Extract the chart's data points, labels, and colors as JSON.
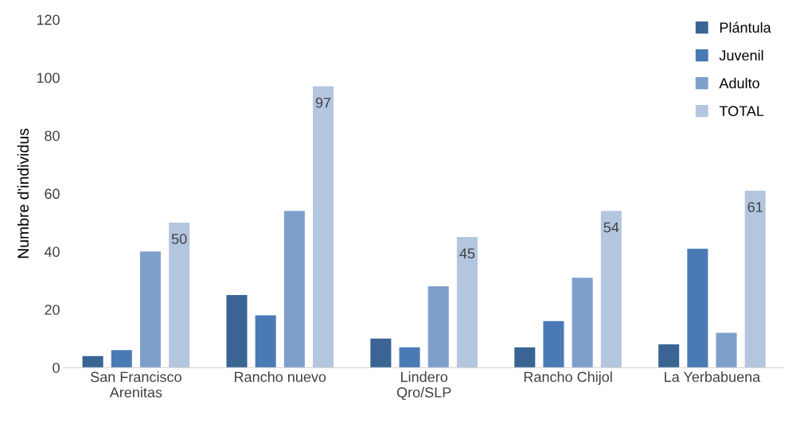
{
  "chart_data": {
    "type": "bar",
    "ylabel": "Numbre d'individus",
    "categories": [
      "San Francisco\nArenitas",
      "Rancho nuevo",
      "Lindero\nQro/SLP",
      "Rancho Chijol",
      "La Yerbabuena"
    ],
    "series": [
      {
        "name": "Plántula",
        "color": "#3a6494",
        "values": [
          4,
          25,
          10,
          7,
          8
        ]
      },
      {
        "name": "Juvenil",
        "color": "#4a7ab5",
        "values": [
          6,
          18,
          7,
          16,
          41
        ]
      },
      {
        "name": "Adulto",
        "color": "#7f9fcb",
        "values": [
          40,
          54,
          28,
          31,
          12
        ]
      },
      {
        "name": "TOTAL",
        "color": "#b4c5e0",
        "values": [
          50,
          97,
          45,
          54,
          61
        ],
        "value_labels": [
          "50",
          "97",
          "45",
          "54",
          "61"
        ]
      }
    ],
    "ylim": [
      0,
      120
    ],
    "yticks": [
      0,
      20,
      40,
      60,
      80,
      100,
      120
    ],
    "grid": false,
    "legend": "top right"
  }
}
